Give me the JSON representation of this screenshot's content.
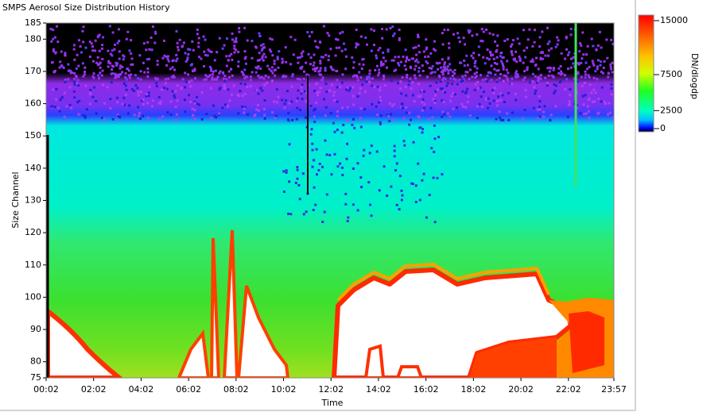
{
  "chart_data": {
    "type": "heatmap",
    "title": "SMPS Aerosol Size Distribution History",
    "xlabel": "Time",
    "ylabel": "Size Channel",
    "xlim": [
      2,
      1437
    ],
    "xticks": [
      {
        "value": 2,
        "label": "00:02"
      },
      {
        "value": 122,
        "label": "02:02"
      },
      {
        "value": 242,
        "label": "04:02"
      },
      {
        "value": 362,
        "label": "06:02"
      },
      {
        "value": 482,
        "label": "08:02"
      },
      {
        "value": 602,
        "label": "10:02"
      },
      {
        "value": 722,
        "label": "12:02"
      },
      {
        "value": 842,
        "label": "14:02"
      },
      {
        "value": 962,
        "label": "16:02"
      },
      {
        "value": 1082,
        "label": "18:02"
      },
      {
        "value": 1202,
        "label": "20:02"
      },
      {
        "value": 1322,
        "label": "22:02"
      },
      {
        "value": 1437,
        "label": "23:57"
      }
    ],
    "ylim": [
      75,
      185
    ],
    "yticks": [
      75,
      80,
      90,
      100,
      110,
      120,
      130,
      140,
      150,
      160,
      170,
      180,
      185
    ],
    "colorbar": {
      "label": "DN/dlogdp",
      "lim": [
        0,
        15000
      ],
      "ticks": [
        0,
        2500,
        7500,
        15000
      ]
    }
  }
}
